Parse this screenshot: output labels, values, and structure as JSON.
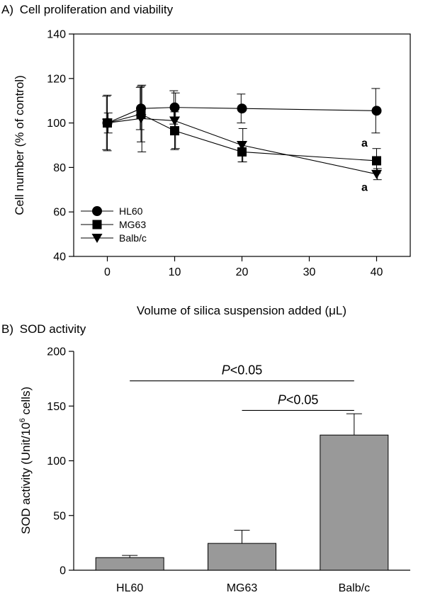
{
  "chart_data": [
    {
      "panel": "A)",
      "type": "line",
      "title": "Cell proliferation and viability",
      "xlabel": "Volume of silica suspension added (μL)",
      "ylabel": "Cell number (% of control)",
      "xlim": [
        -5,
        45
      ],
      "ylim": [
        40,
        140
      ],
      "xticks": [
        0,
        10,
        20,
        30,
        40
      ],
      "yticks": [
        40,
        60,
        80,
        100,
        120,
        140
      ],
      "legend_position": "bottom-left",
      "series": [
        {
          "name": "HL60",
          "marker": "circle",
          "x": [
            0,
            5,
            10,
            20,
            40
          ],
          "y": [
            100,
            106.5,
            107,
            106.5,
            105.5
          ],
          "err": [
            12,
            9.5,
            7.5,
            6.5,
            10
          ]
        },
        {
          "name": "MG63",
          "marker": "square",
          "x": [
            0,
            5,
            10,
            20,
            40
          ],
          "y": [
            100,
            104,
            96.5,
            87,
            83
          ],
          "err": [
            12.5,
            12.5,
            8.5,
            4.5,
            5.5
          ]
        },
        {
          "name": "Balb/c",
          "marker": "triangle-down",
          "x": [
            0,
            5,
            10,
            20,
            40
          ],
          "y": [
            100,
            102,
            101,
            90,
            77
          ],
          "err": [
            4.5,
            15,
            12.5,
            7.5,
            2.5
          ]
        }
      ],
      "annotations": [
        {
          "text": "a",
          "x": 40,
          "y": 91
        },
        {
          "text": "a",
          "x": 40,
          "y": 71
        }
      ]
    },
    {
      "panel": "B)",
      "type": "bar",
      "title": "SOD activity",
      "ylabel_parts": [
        "SOD activity (Unit/10",
        "6",
        " cells)"
      ],
      "categories": [
        "HL60",
        "MG63",
        "Balb/c"
      ],
      "values": [
        11.5,
        24.5,
        123.5
      ],
      "errors": [
        2,
        12,
        19.5
      ],
      "ylim": [
        0,
        200
      ],
      "yticks": [
        0,
        50,
        100,
        150,
        200
      ],
      "color": "#999999",
      "significance": [
        {
          "from": "HL60",
          "to": "Balb/c",
          "y": 173,
          "label_italic": "P",
          "label_rest": "<0.05"
        },
        {
          "from": "MG63",
          "to": "Balb/c",
          "y": 146,
          "label_italic": "P",
          "label_rest": "<0.05"
        }
      ]
    }
  ]
}
